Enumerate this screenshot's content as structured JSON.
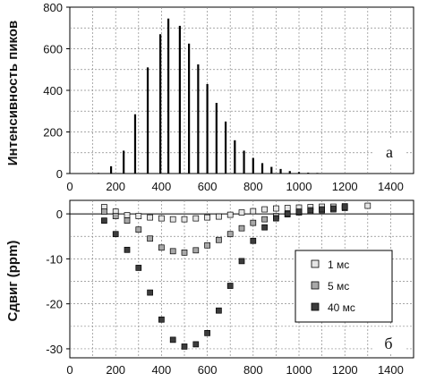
{
  "chart_data": [
    {
      "type": "bar",
      "panel_label": "а",
      "ylabel": "Интенсивность пиков",
      "xlim": [
        0,
        1500
      ],
      "ylim": [
        0,
        800
      ],
      "x_ticks": [
        "0",
        "200",
        "400",
        "600",
        "800",
        "1000",
        "1200",
        "1400"
      ],
      "y_ticks": [
        "0",
        "200",
        "400",
        "600",
        "800"
      ],
      "grid": true,
      "x": [
        125,
        180,
        235,
        285,
        340,
        395,
        430,
        480,
        520,
        560,
        600,
        640,
        680,
        720,
        760,
        800,
        840,
        880,
        920,
        960,
        1000,
        1040,
        1080,
        1120,
        1160,
        1200,
        1240
      ],
      "values": [
        3,
        35,
        110,
        285,
        510,
        670,
        745,
        710,
        625,
        525,
        430,
        340,
        250,
        160,
        110,
        75,
        50,
        32,
        22,
        12,
        7,
        4,
        3,
        2,
        1,
        1,
        1
      ]
    },
    {
      "type": "scatter",
      "panel_label": "б",
      "ylabel": "Сдвиг (ppm)",
      "xlim": [
        0,
        1500
      ],
      "ylim": [
        -32,
        3
      ],
      "x_ticks": [
        "0",
        "200",
        "400",
        "600",
        "800",
        "1000",
        "1200",
        "1400"
      ],
      "y_ticks": [
        "0",
        "-10",
        "-20",
        "-30"
      ],
      "grid": true,
      "legend_position": "right",
      "series": [
        {
          "name": "1 мс",
          "color": "#e6e6e6",
          "x": [
            150,
            200,
            250,
            300,
            350,
            400,
            450,
            500,
            550,
            600,
            650,
            700,
            750,
            800,
            850,
            900,
            950,
            1000,
            1050,
            1100,
            1150,
            1200,
            1300
          ],
          "y": [
            1.5,
            0.5,
            -0.3,
            -0.5,
            -0.8,
            -1.0,
            -1.2,
            -1.2,
            -1.0,
            -0.8,
            -0.6,
            -0.2,
            0.3,
            0.6,
            1.0,
            1.2,
            1.3,
            1.4,
            1.5,
            1.6,
            1.6,
            1.7,
            1.8
          ]
        },
        {
          "name": "5 мс",
          "color": "#a8a8a8",
          "x": [
            150,
            200,
            250,
            300,
            350,
            400,
            450,
            500,
            550,
            600,
            650,
            700,
            750,
            800,
            850,
            900,
            950,
            1000,
            1050,
            1100,
            1150,
            1200
          ],
          "y": [
            0.5,
            -0.5,
            -1.5,
            -3.5,
            -5.5,
            -7.5,
            -8.3,
            -8.6,
            -8.1,
            -7.0,
            -5.8,
            -4.5,
            -3.2,
            -2.0,
            -1.2,
            -0.5,
            -0.1,
            0.3,
            0.6,
            0.8,
            1.0,
            1.3
          ]
        },
        {
          "name": "40 мс",
          "color": "#3c3c3c",
          "x": [
            150,
            200,
            250,
            300,
            350,
            400,
            450,
            500,
            550,
            600,
            650,
            700,
            750,
            800,
            850,
            900,
            950,
            1000,
            1050,
            1100,
            1150,
            1200
          ],
          "y": [
            -1.5,
            -4.5,
            -8.0,
            -12.0,
            -17.5,
            -23.5,
            -28.0,
            -29.5,
            -29.0,
            -26.5,
            -21.5,
            -16.0,
            -10.5,
            -6.0,
            -3.0,
            -1.0,
            0.0,
            0.5,
            0.8,
            1.0,
            1.2,
            1.5
          ]
        }
      ]
    }
  ]
}
